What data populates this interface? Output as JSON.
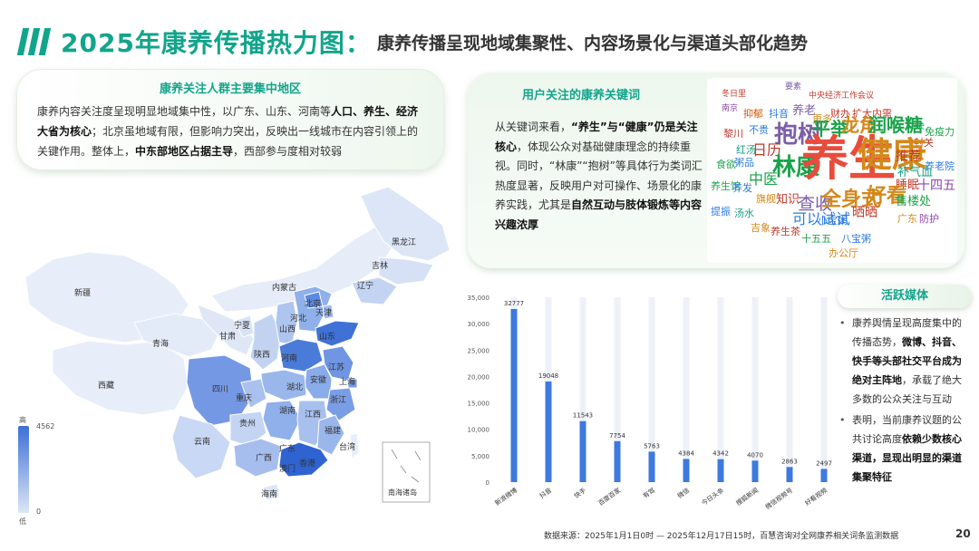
{
  "header": {
    "title": "2025年康养传播热力图：",
    "subtitle": "康养传播呈现地域集聚性、内容场景化与渠道头部化趋势",
    "accent_color": "#12a58b"
  },
  "region_panel": {
    "heading": "康养关注人群主要集中地区",
    "p1": "康养内容关注度呈现明显地域集中性，以广东、山东、河南等",
    "p1_bold": "人口、养生、经济大省为核心",
    "p2": "；北京虽地域有限，但影响力突出，反映出一线城市在内容引领上的关键作用。整体上，",
    "p2_bold": "中东部地区占据主导",
    "p3": "，西部参与度相对较弱"
  },
  "keyword_panel": {
    "heading": "用户关注的康养关键词",
    "p1": "从关键词来看，",
    "p1_bold": "“养生”与“健康”仍是关注核心",
    "p2": "，体现公众对基础健康理念的持续重视。同时，“林康”“抱树”等具体行为类词汇热度显著，反映用户对可操作、场景化的康养实践，尤其是",
    "p2_bold": "自然互动与肢体锻炼等内容兴趣浓厚",
    "words": [
      "冬日里",
      "要素",
      "中央经济工作会议",
      "南京",
      "抑郁",
      "抖音",
      "养老",
      "更多",
      "财办",
      "扩大内需",
      "中央",
      "黎川",
      "不贵",
      "抱树",
      "平举",
      "龙角",
      "润喉糖",
      "封关",
      "免疫力",
      "食欲",
      "红汤",
      "日历",
      "林康",
      "养生",
      "健康",
      "推荐",
      "养生馆",
      "粥品",
      "中医",
      "补气血",
      "养老院",
      "提振",
      "养发",
      "旗舰",
      "知识",
      "查收",
      "全身式",
      "睡眠",
      "十四五",
      "汤水",
      "吉象",
      "可以试试",
      "小宝粥",
      "好看",
      "售楼处",
      "广东",
      "养生茶",
      "十五五",
      "八宝粥",
      "晒晒",
      "办公厅",
      "防护"
    ]
  },
  "map": {
    "legend_high": "高",
    "legend_low": "低",
    "legend_max": "4562",
    "legend_min": "0",
    "provinces": [
      "黑龙江",
      "吉林",
      "辽宁",
      "内蒙古",
      "新疆",
      "北京",
      "天津",
      "河北",
      "山西",
      "宁夏",
      "甘肃",
      "青海",
      "陕西",
      "山东",
      "河南",
      "江苏",
      "西藏",
      "四川",
      "湖北",
      "安徽",
      "上海",
      "重庆",
      "浙江",
      "湖南",
      "江西",
      "贵州",
      "福建",
      "云南",
      "广西",
      "广东",
      "台湾",
      "香港",
      "澳门",
      "海南",
      "南海诸岛"
    ]
  },
  "media": {
    "title": "活跃媒体",
    "b1_a": "康养舆情呈现高度集中的传播态势，",
    "b1_bold": "微博、抖音、快手等头部社交平台成为绝对主阵地",
    "b1_b": "，承载了绝大多数的公众关注与互动",
    "b2_a": "表明，当前康养议题的公共讨论高度",
    "b2_bold": "依赖少数核心渠道，显现出明显的渠道集聚特征"
  },
  "chart_data": {
    "type": "bar",
    "categories": [
      "新浪微博",
      "抖音",
      "快手",
      "百度百家",
      "有驾",
      "微信",
      "今日头条",
      "搜狐新闻",
      "微信视频号",
      "好看视频"
    ],
    "values": [
      32777,
      19048,
      11543,
      7754,
      5763,
      4384,
      4342,
      4070,
      2863,
      2497
    ],
    "ylim": [
      0,
      35000
    ],
    "yticks": [
      "0",
      "5,000",
      "10,000",
      "15,000",
      "20,000",
      "25,000",
      "30,000",
      "35,000"
    ],
    "bar_color": "#3d79df",
    "background_bar_color": "#eef1f8",
    "grid": false,
    "title": "",
    "xlabel": "",
    "ylabel": ""
  },
  "footer": {
    "source": "数据来源：2025年1月1日0时 — 2025年12月17日15时，百慧咨询对全网康养相关词条监测数据",
    "page": "20"
  }
}
